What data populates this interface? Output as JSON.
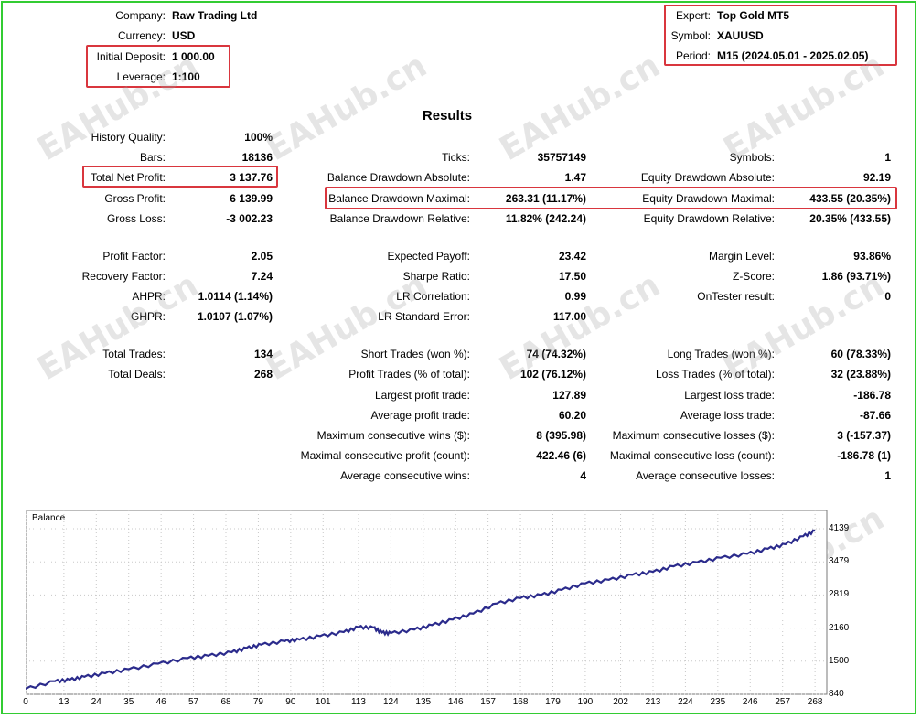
{
  "header_left": [
    {
      "label": "Company:",
      "value": "Raw Trading Ltd"
    },
    {
      "label": "Currency:",
      "value": "USD"
    },
    {
      "label": "Initial Deposit:",
      "value": "1 000.00"
    },
    {
      "label": "Leverage:",
      "value": "1:100"
    }
  ],
  "header_right": [
    {
      "label": "Expert:",
      "value": "Top Gold MT5"
    },
    {
      "label": "Symbol:",
      "value": "XAUUSD"
    },
    {
      "label": "Period:",
      "value": "M15 (2024.05.01 - 2025.02.05)"
    }
  ],
  "results_title": "Results",
  "col1": [
    {
      "label": "History Quality:",
      "value": "100%"
    },
    {
      "label": "Bars:",
      "value": "18136"
    },
    {
      "label": "Total Net Profit:",
      "value": "3 137.76"
    },
    {
      "label": "Gross Profit:",
      "value": "6 139.99"
    },
    {
      "label": "Gross Loss:",
      "value": "-3 002.23"
    },
    {
      "label": "Profit Factor:",
      "value": "2.05"
    },
    {
      "label": "Recovery Factor:",
      "value": "7.24"
    },
    {
      "label": "AHPR:",
      "value": "1.0114 (1.14%)"
    },
    {
      "label": "GHPR:",
      "value": "1.0107 (1.07%)"
    },
    {
      "label": "Total Trades:",
      "value": "134"
    },
    {
      "label": "Total Deals:",
      "value": "268"
    }
  ],
  "col2": [
    {
      "label": "Ticks:",
      "value": "35757149"
    },
    {
      "label": "Balance Drawdown Absolute:",
      "value": "1.47"
    },
    {
      "label": "Balance Drawdown Maximal:",
      "value": "263.31 (11.17%)"
    },
    {
      "label": "Balance Drawdown Relative:",
      "value": "11.82% (242.24)"
    },
    {
      "label": "Expected Payoff:",
      "value": "23.42"
    },
    {
      "label": "Sharpe Ratio:",
      "value": "17.50"
    },
    {
      "label": "LR Correlation:",
      "value": "0.99"
    },
    {
      "label": "LR Standard Error:",
      "value": "117.00"
    },
    {
      "label": "Short Trades (won %):",
      "value": "74 (74.32%)"
    },
    {
      "label": "Profit Trades (% of total):",
      "value": "102 (76.12%)"
    },
    {
      "label": "Largest profit trade:",
      "value": "127.89"
    },
    {
      "label": "Average profit trade:",
      "value": "60.20"
    },
    {
      "label": "Maximum consecutive wins ($):",
      "value": "8 (395.98)"
    },
    {
      "label": "Maximal consecutive profit (count):",
      "value": "422.46 (6)"
    },
    {
      "label": "Average consecutive wins:",
      "value": "4"
    }
  ],
  "col3": [
    {
      "label": "Symbols:",
      "value": "1"
    },
    {
      "label": "Equity Drawdown Absolute:",
      "value": "92.19"
    },
    {
      "label": "Equity Drawdown Maximal:",
      "value": "433.55 (20.35%)"
    },
    {
      "label": "Equity Drawdown Relative:",
      "value": "20.35% (433.55)"
    },
    {
      "label": "Margin Level:",
      "value": "93.86%"
    },
    {
      "label": "Z-Score:",
      "value": "1.86 (93.71%)"
    },
    {
      "label": "OnTester result:",
      "value": "0"
    },
    {
      "label": "Long Trades (won %):",
      "value": "60 (78.33%)"
    },
    {
      "label": "Loss Trades (% of total):",
      "value": "32 (23.88%)"
    },
    {
      "label": "Largest loss trade:",
      "value": "-186.78"
    },
    {
      "label": "Average loss trade:",
      "value": "-87.66"
    },
    {
      "label": "Maximum consecutive losses ($):",
      "value": "3 (-157.37)"
    },
    {
      "label": "Maximal consecutive loss (count):",
      "value": "-186.78 (1)"
    },
    {
      "label": "Average consecutive losses:",
      "value": "1"
    }
  ],
  "watermark_text": "EAHub.cn",
  "colors": {
    "frame": "#33cc33",
    "highlight": "#d9363e",
    "line": "#2b2b8c",
    "grid": "#c8c8c8"
  },
  "chart_data": {
    "type": "line",
    "title": "Balance",
    "x": [
      0,
      10,
      15,
      20,
      27,
      35,
      45,
      55,
      62,
      70,
      75,
      80,
      88,
      93,
      100,
      108,
      113,
      118,
      121,
      124,
      132,
      138,
      145,
      152,
      160,
      168,
      175,
      182,
      190,
      198,
      206,
      213,
      220,
      228,
      236,
      245,
      252,
      258,
      264,
      268
    ],
    "y": [
      950,
      1100,
      1130,
      1190,
      1260,
      1340,
      1450,
      1560,
      1610,
      1680,
      1760,
      1830,
      1900,
      1930,
      2000,
      2080,
      2180,
      2170,
      2070,
      2060,
      2130,
      2220,
      2330,
      2450,
      2650,
      2760,
      2820,
      2920,
      3050,
      3120,
      3220,
      3280,
      3390,
      3470,
      3560,
      3640,
      3740,
      3830,
      3990,
      4100
    ],
    "x_ticks": [
      "0",
      "13",
      "24",
      "35",
      "46",
      "57",
      "68",
      "79",
      "90",
      "101",
      "113",
      "124",
      "135",
      "146",
      "157",
      "168",
      "179",
      "190",
      "202",
      "213",
      "224",
      "235",
      "246",
      "257",
      "268"
    ],
    "y_ticks": [
      "4139",
      "3479",
      "2819",
      "2160",
      "1500",
      "840"
    ],
    "xlim": [
      0,
      272
    ],
    "ylim": [
      840,
      4139
    ],
    "grid": true,
    "legend": "none"
  }
}
